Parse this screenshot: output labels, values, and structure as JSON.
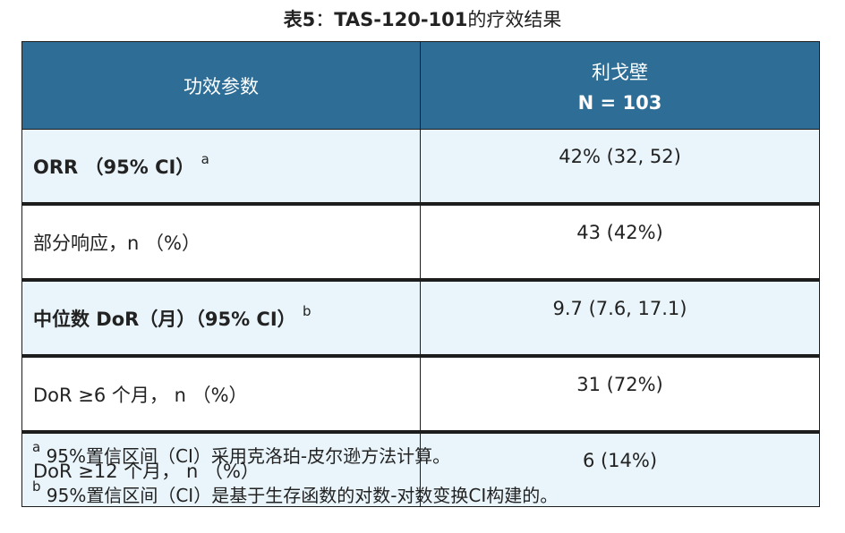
{
  "title": {
    "prefix": "表5",
    "colon": "：",
    "bold_part": "TAS-120-101",
    "suffix": "的疗效结果"
  },
  "table": {
    "header": {
      "col1": "功效参数",
      "col2_line1": "利戈壁",
      "col2_line2": "N = 103"
    },
    "rows": [
      {
        "label": "ORR （95% CI）",
        "sup": "a",
        "value": "42% (32, 52)",
        "bold": true
      },
      {
        "label": "部分响应，n （%）",
        "sup": "",
        "value": "43 (42%)",
        "bold": false
      },
      {
        "label": "中位数 DoR（月）（95% CI）",
        "sup": "b",
        "value": "9.7 (7.6, 17.1)",
        "bold": true
      },
      {
        "label": "DoR ≥6 个月， n （%）",
        "sup": "",
        "value": "31 (72%)",
        "bold": false
      },
      {
        "label": "DoR ≥12 个月， n （%）",
        "sup": "",
        "value": "6 (14%)",
        "bold": false
      }
    ]
  },
  "footnotes": [
    {
      "mark": "a",
      "text": "95%置信区间（CI）采用克洛珀-皮尔逊方法计算。"
    },
    {
      "mark": "b",
      "text": "95%置信区间（CI）是基于生存函数的对数-对数变换CI构建的。"
    }
  ],
  "colors": {
    "header_bg": "#2e6e96",
    "shaded_row_bg": "#eaf5fb",
    "border": "#1d1d1d"
  }
}
